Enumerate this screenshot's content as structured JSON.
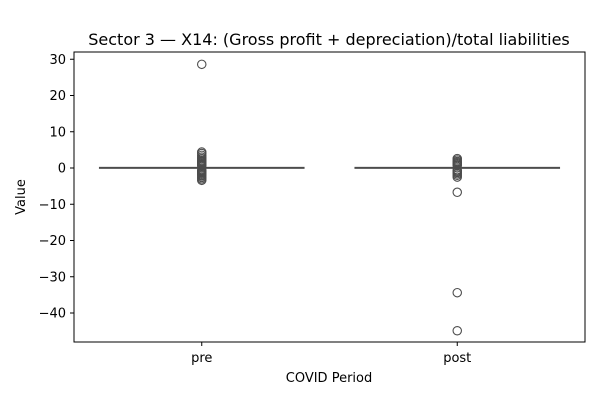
{
  "chart_data": {
    "type": "box",
    "title": "Sector 3 — X14: (Gross profit + depreciation)/total liabilities",
    "xlabel": "COVID Period",
    "ylabel": "Value",
    "categories": [
      "pre",
      "post"
    ],
    "ylim": [
      -48,
      32
    ],
    "yticks": [
      30,
      20,
      10,
      0,
      -10,
      -20,
      -30,
      -40
    ],
    "ytick_labels": [
      "30",
      "20",
      "10",
      "0",
      "−10",
      "−20",
      "−30",
      "−40"
    ],
    "box_color": "#4c4c4c",
    "boxes": [
      {
        "category": "pre",
        "whisker_low": -0.3,
        "q1": -0.05,
        "median": 0.05,
        "q3": 0.15,
        "whisker_high": 0.3,
        "outliers": [
          28.6,
          4.4,
          4.0,
          3.5,
          3.0,
          2.6,
          2.2,
          1.9,
          1.6,
          1.3,
          1.0,
          0.8,
          0.6,
          -0.6,
          -0.8,
          -1.0,
          -1.3,
          -1.6,
          -1.9,
          -2.2,
          -2.6,
          -3.0,
          -3.4
        ]
      },
      {
        "category": "post",
        "whisker_low": -0.3,
        "q1": -0.05,
        "median": 0.05,
        "q3": 0.15,
        "whisker_high": 0.3,
        "outliers": [
          2.6,
          2.2,
          1.8,
          1.5,
          1.2,
          0.9,
          0.7,
          -0.6,
          -0.9,
          -1.2,
          -1.6,
          -2.0,
          -2.5,
          -6.7,
          -34.4,
          -44.9
        ]
      }
    ]
  }
}
